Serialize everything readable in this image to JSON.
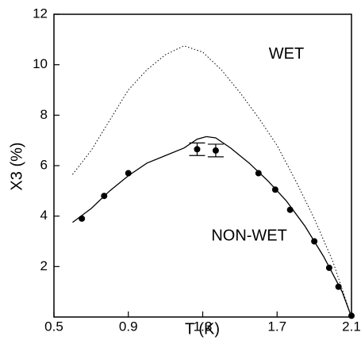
{
  "chart_data": {
    "type": "scatter",
    "xlabel": "T (K)",
    "ylabel": "X3 (%)",
    "xlim": [
      0.5,
      2.1
    ],
    "xticks": [
      0.5,
      0.9,
      1.3,
      1.7,
      2.1
    ],
    "ylim": [
      0,
      12
    ],
    "yticks": [
      2,
      4,
      6,
      8,
      10,
      12
    ],
    "annotations": [
      {
        "text": "WET",
        "x": 1.75,
        "y": 10.4
      },
      {
        "text": "NON-WET",
        "x": 1.55,
        "y": 3.2
      }
    ],
    "series": [
      {
        "style": "solid",
        "color": "#000000",
        "x": [
          0.6,
          0.7,
          0.8,
          0.9,
          1.0,
          1.1,
          1.2,
          1.27,
          1.32,
          1.37,
          1.45,
          1.55,
          1.65,
          1.75,
          1.85,
          1.95,
          2.05,
          2.1
        ],
        "values": [
          3.75,
          4.3,
          5.0,
          5.6,
          6.1,
          6.4,
          6.7,
          7.05,
          7.15,
          7.1,
          6.7,
          6.1,
          5.4,
          4.6,
          3.6,
          2.4,
          1.0,
          0
        ]
      },
      {
        "style": "dotted",
        "color": "#000000",
        "x": [
          0.6,
          0.7,
          0.8,
          0.9,
          1.0,
          1.1,
          1.2,
          1.3,
          1.4,
          1.5,
          1.6,
          1.7,
          1.8,
          1.9,
          2.0,
          2.1
        ],
        "values": [
          5.65,
          6.6,
          7.8,
          9.0,
          9.8,
          10.4,
          10.75,
          10.5,
          9.8,
          8.9,
          7.9,
          6.8,
          5.4,
          3.9,
          2.2,
          0
        ]
      },
      {
        "style": "markers",
        "color": "#000000",
        "x": [
          0.65,
          0.77,
          0.9,
          1.27,
          1.37,
          1.6,
          1.69,
          1.77,
          1.9,
          1.98,
          2.03,
          2.1
        ],
        "values": [
          3.9,
          4.8,
          5.7,
          6.65,
          6.6,
          5.7,
          5.05,
          4.25,
          3.0,
          1.95,
          1.2,
          0.05
        ],
        "errors": [
          null,
          null,
          null,
          0.25,
          0.25,
          null,
          null,
          null,
          null,
          null,
          null,
          null
        ]
      }
    ]
  }
}
